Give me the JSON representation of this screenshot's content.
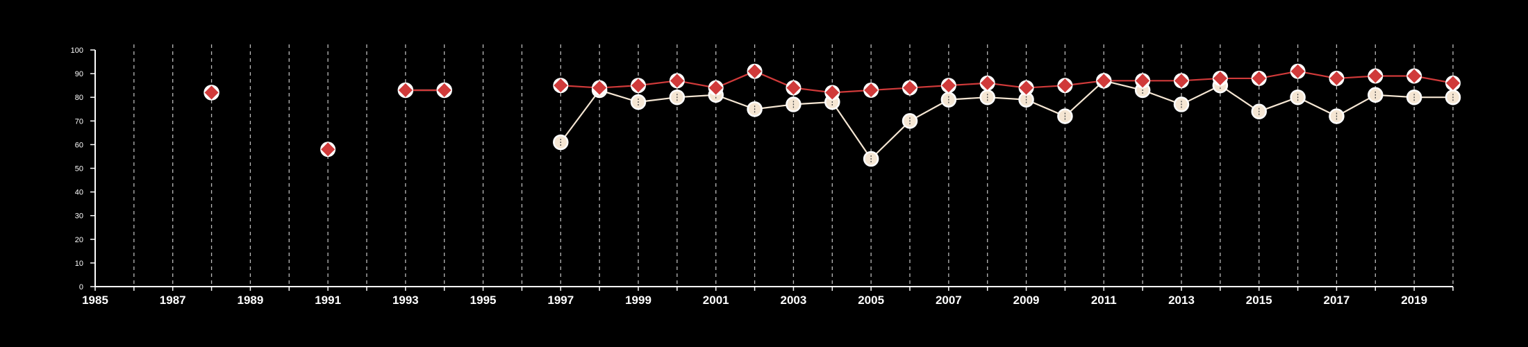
{
  "colors": {
    "background": "#000000",
    "axis": "#ffffff",
    "grid": "#bbbbbb",
    "series_red": "#d03a3a",
    "series_cream": "#f5e6d3",
    "marker_outline": "#ffffff"
  },
  "chart_data": {
    "type": "line",
    "title": "",
    "xlabel": "",
    "ylabel": "",
    "xlim": [
      1985,
      2020
    ],
    "ylim": [
      0,
      100
    ],
    "grid": {
      "vertical": true,
      "horizontal": false,
      "style": "dashed"
    },
    "x_tick_labels": [
      "1985",
      "1987",
      "1989",
      "1991",
      "1993",
      "1995",
      "1997",
      "1999",
      "2001",
      "2003",
      "2005",
      "2007",
      "2009",
      "2011",
      "2013",
      "2015",
      "2017",
      "2019"
    ],
    "y_tick_labels": [
      "0",
      "10",
      "20",
      "30",
      "40",
      "50",
      "60",
      "70",
      "80",
      "90",
      "100"
    ],
    "series": [
      {
        "marker": "diamond",
        "color": "#d03a3a",
        "points": [
          [
            1988,
            82
          ],
          [
            1991,
            58
          ],
          [
            1993,
            83
          ],
          [
            1994,
            83
          ],
          [
            1997,
            85
          ],
          [
            1998,
            84
          ],
          [
            1999,
            85
          ],
          [
            2000,
            87
          ],
          [
            2001,
            84
          ],
          [
            2002,
            91
          ],
          [
            2003,
            84
          ],
          [
            2004,
            82
          ],
          [
            2005,
            83
          ],
          [
            2006,
            84
          ],
          [
            2007,
            85
          ],
          [
            2008,
            86
          ],
          [
            2009,
            84
          ],
          [
            2010,
            85
          ],
          [
            2011,
            87
          ],
          [
            2012,
            87
          ],
          [
            2013,
            87
          ],
          [
            2014,
            88
          ],
          [
            2015,
            88
          ],
          [
            2016,
            91
          ],
          [
            2017,
            88
          ],
          [
            2018,
            89
          ],
          [
            2019,
            89
          ],
          [
            2020,
            86
          ]
        ]
      },
      {
        "marker": "circle",
        "color": "#f5e6d3",
        "points": [
          [
            1988,
            82
          ],
          [
            1993,
            83
          ],
          [
            1994,
            83
          ],
          [
            1997,
            61
          ],
          [
            1998,
            83
          ],
          [
            1999,
            78
          ],
          [
            2000,
            80
          ],
          [
            2001,
            81
          ],
          [
            2002,
            75
          ],
          [
            2003,
            77
          ],
          [
            2004,
            78
          ],
          [
            2005,
            54
          ],
          [
            2006,
            70
          ],
          [
            2007,
            79
          ],
          [
            2008,
            80
          ],
          [
            2009,
            79
          ],
          [
            2010,
            72
          ],
          [
            2011,
            87
          ],
          [
            2012,
            83
          ],
          [
            2013,
            77
          ],
          [
            2014,
            85
          ],
          [
            2015,
            74
          ],
          [
            2016,
            80
          ],
          [
            2017,
            72
          ],
          [
            2018,
            81
          ],
          [
            2019,
            80
          ],
          [
            2020,
            80
          ]
        ]
      }
    ]
  }
}
